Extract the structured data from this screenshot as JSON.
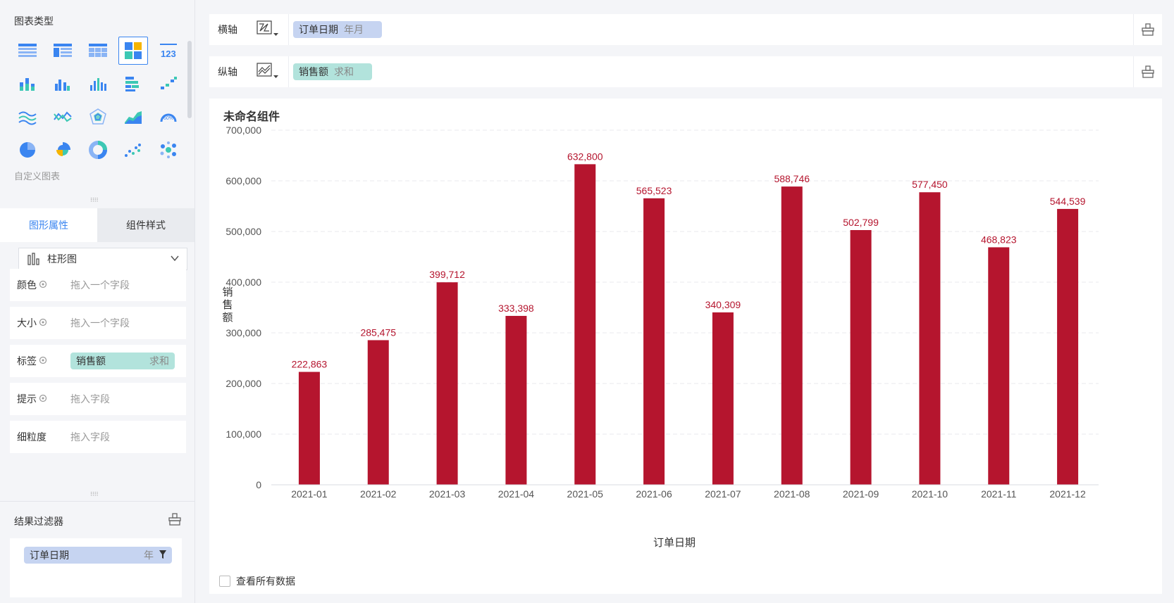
{
  "left": {
    "chart_type_title": "图表类型",
    "custom_chart": "自定义图表",
    "chart_type_icons": [
      "table-icon",
      "cross-table-icon",
      "detail-table-icon",
      "custom-chart-icon",
      "number-card-icon",
      "stacked-bar-icon",
      "grouped-bar-icon",
      "bar-chart-icon",
      "horizontal-bar-icon",
      "waterfall-icon",
      "multi-line-icon",
      "line-chart-icon",
      "radar-icon",
      "area-chart-icon",
      "gauge-icon",
      "pie-chart-icon",
      "rose-pie-icon",
      "donut-icon",
      "scatter-icon",
      "bubble-icon"
    ],
    "selected_chart_type": "custom-chart-icon",
    "tabs": {
      "graph_props": "图形属性",
      "component_style": "组件样式"
    },
    "shape_select": "柱形图",
    "props": [
      {
        "label": "颜色",
        "placeholder": "拖入一个字段"
      },
      {
        "label": "大小",
        "placeholder": "拖入一个字段"
      },
      {
        "label": "标签",
        "field": "销售额",
        "agg": "求和"
      },
      {
        "label": "提示",
        "placeholder": "拖入字段"
      },
      {
        "label": "细粒度",
        "placeholder": "拖入字段"
      }
    ],
    "filter_title": "结果过滤器",
    "filter_field": "订单日期",
    "filter_sub": "年"
  },
  "main": {
    "x_axis_label": "横轴",
    "x_field": "订单日期",
    "x_field_sub": "年月",
    "y_axis_label": "纵轴",
    "y_field": "销售额",
    "y_field_sub": "求和",
    "chart_title": "未命名组件",
    "view_all_data": "查看所有数据"
  },
  "colors": {
    "bar": "#b5152e",
    "label": "#b5152e",
    "accent": "#3a85f0"
  },
  "chart_data": {
    "type": "bar",
    "xlabel": "订单日期",
    "ylabel": "销售额",
    "categories": [
      "2021-01",
      "2021-02",
      "2021-03",
      "2021-04",
      "2021-05",
      "2021-06",
      "2021-07",
      "2021-08",
      "2021-09",
      "2021-10",
      "2021-11",
      "2021-12"
    ],
    "values": [
      222863,
      285475,
      399712,
      333398,
      632800,
      565523,
      340309,
      588746,
      502799,
      577450,
      468823,
      544539
    ],
    "value_labels": [
      "222,863",
      "285,475",
      "399,712",
      "333,398",
      "632,800",
      "565,523",
      "340,309",
      "588,746",
      "502,799",
      "577,450",
      "468,823",
      "544,539"
    ],
    "ylim": [
      0,
      700000
    ],
    "yticks": [
      0,
      100000,
      200000,
      300000,
      400000,
      500000,
      600000,
      700000
    ],
    "ytick_labels": [
      "0",
      "100,000",
      "200,000",
      "300,000",
      "400,000",
      "500,000",
      "600,000",
      "700,000"
    ],
    "grid": true
  }
}
